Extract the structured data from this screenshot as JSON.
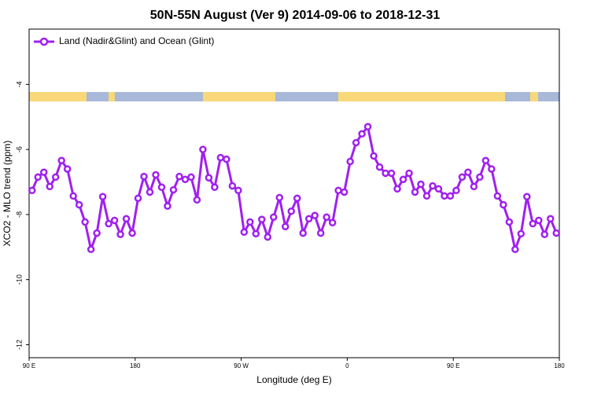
{
  "chart_data": {
    "type": "line",
    "title": "50N-55N August (Ver 9)   2014-09-06 to 2018-12-31",
    "xlabel": "Longitude (deg E)",
    "ylabel": "XCO2 - MLO trend (ppm)",
    "legend": "upper left",
    "xlim": [
      90,
      540
    ],
    "ylim": [
      -12.4,
      -2.3
    ],
    "xticks": [
      {
        "value": 90,
        "label": "90 E"
      },
      180,
      {
        "value": 270,
        "label": "90 W"
      },
      {
        "value": 360,
        "label": "0"
      },
      {
        "value": 450,
        "label": "90 E"
      },
      {
        "value": 540,
        "label": "180"
      }
    ],
    "yticks": [
      -4,
      -6,
      -8,
      -10,
      -12
    ],
    "x": [
      92.5,
      97.5,
      102.5,
      107.5,
      112.5,
      117.5,
      122.5,
      127.5,
      132.5,
      137.5,
      142.5,
      147.5,
      152.5,
      157.5,
      162.5,
      167.5,
      172.5,
      177.5,
      182.5,
      187.5,
      192.5,
      197.5,
      202.5,
      207.5,
      212.5,
      217.5,
      222.5,
      227.5,
      232.5,
      237.5,
      242.5,
      247.5,
      252.5,
      257.5,
      262.5,
      267.5,
      272.5,
      277.5,
      282.5,
      287.5,
      292.5,
      297.5,
      302.5,
      307.5,
      312.5,
      317.5,
      322.5,
      327.5,
      332.5,
      337.5,
      342.5,
      347.5,
      352.5,
      357.5,
      362.5,
      367.5,
      372.5,
      377.5,
      382.5,
      387.5,
      392.5,
      397.5,
      402.5,
      407.5,
      412.5,
      417.5,
      422.5,
      427.5,
      432.5,
      437.5,
      442.5,
      447.5,
      452.5,
      457.5,
      462.5,
      467.5,
      472.5,
      477.5,
      482.5,
      487.5,
      492.5,
      497.5,
      502.5,
      507.5,
      512.5,
      517.5,
      522.5,
      527.5,
      532.5,
      537.5
    ],
    "series": [
      {
        "name": "Land (Nadir&Glint) and Ocean (Glint)",
        "color": "#a020f0",
        "values": [
          -7.26,
          -6.85,
          -6.7,
          -7.14,
          -6.85,
          -6.34,
          -6.6,
          -7.43,
          -7.7,
          -8.23,
          -9.07,
          -8.57,
          -7.45,
          -8.28,
          -8.18,
          -8.61,
          -8.13,
          -8.57,
          -7.5,
          -6.83,
          -7.31,
          -6.78,
          -7.16,
          -7.74,
          -7.24,
          -6.83,
          -6.92,
          -6.85,
          -7.55,
          -6.0,
          -6.87,
          -7.16,
          -6.25,
          -6.3,
          -7.12,
          -7.26,
          -8.54,
          -8.23,
          -8.59,
          -8.15,
          -8.69,
          -8.08,
          -7.48,
          -8.37,
          -7.9,
          -7.5,
          -8.57,
          -8.13,
          -8.03,
          -8.57,
          -8.08,
          -8.25,
          -7.26,
          -7.31,
          -6.37,
          -5.79,
          -5.52,
          -5.3,
          -6.2,
          -6.54,
          -6.73,
          -6.73,
          -7.21,
          -6.92,
          -6.73,
          -7.31,
          -7.07,
          -7.43,
          -7.12,
          -7.21,
          -7.43,
          -7.43,
          -7.26,
          -6.85,
          -6.7,
          -7.14,
          -6.85,
          -6.34,
          -6.6,
          -7.43,
          -7.7,
          -8.23,
          -9.07,
          -8.59,
          -7.45,
          -8.28,
          -8.18,
          -8.61,
          -8.13,
          -8.57
        ]
      }
    ]
  }
}
